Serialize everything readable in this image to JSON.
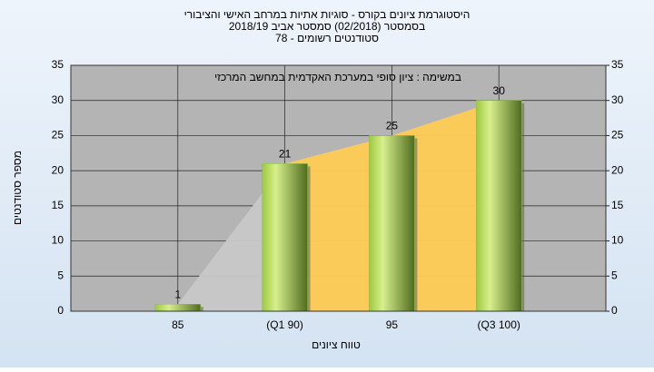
{
  "chart_data": {
    "type": "bar",
    "title": [
      "היסטוגרמת ציונים בקורס - סוגיות אתיות במרחב האישי והציבורי",
      "בסמסטר  (02/2018)  סמסטר אביב 2018/19",
      "סטודנטים רשומים - 78"
    ],
    "annotation": "במשימה : ציון סופי במערכת האקדמית במחשב המרכזי",
    "x_label": "טווח ציונים",
    "y_label": "מספר סטודנטים",
    "categories": [
      "85",
      "(Q1 90)",
      "95",
      "(Q3 100)"
    ],
    "values": [
      1,
      21,
      25,
      30
    ],
    "color": "#8fbf3a",
    "ylim": [
      0,
      35
    ],
    "yticks": [
      0,
      5,
      10,
      15,
      20,
      25,
      30,
      35
    ],
    "y2lim": [
      0,
      35
    ],
    "y2ticks": [
      0,
      5,
      10,
      15,
      20,
      25,
      30,
      35
    ],
    "grid": true
  }
}
